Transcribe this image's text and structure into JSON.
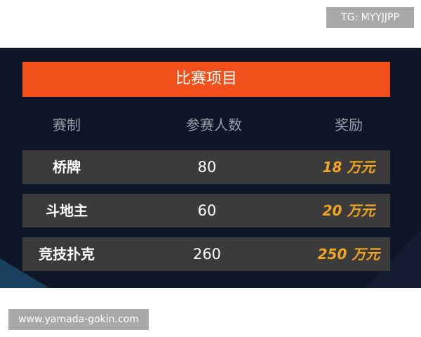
{
  "header": {
    "tag": "TG: MYYJJPP"
  },
  "table": {
    "title": "比赛项目",
    "columns": [
      "赛制",
      "参赛人数",
      "奖励"
    ],
    "rows": [
      [
        "桥牌",
        "80",
        "18 万元"
      ],
      [
        "斗地主",
        "60",
        "20 万元"
      ],
      [
        "竞技扑克",
        "260",
        "250 万元"
      ]
    ]
  },
  "footer": {
    "url": "www.yamada-gokin.com"
  }
}
